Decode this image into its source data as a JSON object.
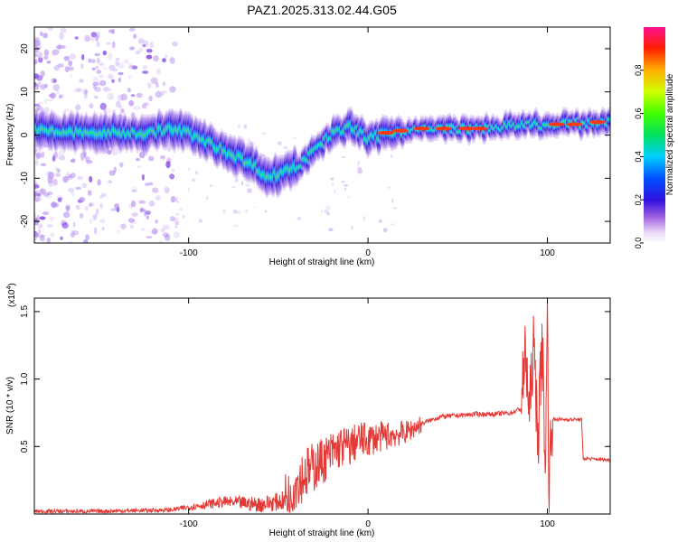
{
  "figure": {
    "title": "PAZ1.2025.313.02.44.G05"
  },
  "chart_data": [
    {
      "type": "heatmap",
      "xlabel": "Height of straight line (km)",
      "ylabel": "Frequency (Hz)",
      "xlim": [
        -186,
        135
      ],
      "ylim": [
        -25,
        25
      ],
      "xticks": [
        -100,
        0,
        100
      ],
      "yticks": [
        -20,
        -10,
        0,
        10,
        20
      ],
      "ridge": {
        "x": [
          -185,
          -160,
          -140,
          -120,
          -110,
          -100,
          -90,
          -80,
          -70,
          -60,
          -55,
          -50,
          -45,
          -40,
          -35,
          -30,
          -20,
          -10,
          -5,
          0,
          10,
          20,
          40,
          60,
          80,
          95,
          100,
          110,
          135
        ],
        "frequency": [
          1,
          0.5,
          0.5,
          0.5,
          1.5,
          0.5,
          -1.5,
          -3.5,
          -5.5,
          -8,
          -10,
          -9,
          -8,
          -7.5,
          -6,
          -3,
          0,
          2,
          1,
          -1,
          0.5,
          1,
          1.5,
          1.5,
          2,
          2.5,
          2,
          2.5,
          3
        ]
      },
      "colorbar": {
        "label": "Normalized spectral amplitude",
        "range": [
          0,
          1
        ],
        "ticks": [
          "0.0",
          "0.2",
          "0.4",
          "0.6",
          "0.8"
        ]
      }
    },
    {
      "type": "line",
      "xlabel": "Height of straight line (km)",
      "ylabel": "SNR (10 * v/v)",
      "multiplier_label": "(x10",
      "multiplier_exp": "4",
      "multiplier_close": ")",
      "xlim": [
        -186,
        135
      ],
      "ylim": [
        0,
        1.6
      ],
      "xticks": [
        -100,
        0,
        100
      ],
      "yticks": [
        "0.5",
        "1.0",
        "1.5"
      ],
      "yticks_values": [
        0.5,
        1.0,
        1.5
      ],
      "color": "#e53935",
      "series": {
        "name": "SNR",
        "x": [
          -186,
          -150,
          -110,
          -95,
          -80,
          -60,
          -46,
          -40,
          -35,
          -30,
          -25,
          -20,
          -15,
          -10,
          -5,
          0,
          10,
          20,
          25,
          30,
          40,
          50,
          60,
          70,
          80,
          85,
          88,
          90,
          92,
          95,
          97,
          99,
          100,
          101,
          102,
          104,
          110,
          119,
          120,
          122,
          135
        ],
        "y": [
          0.02,
          0.02,
          0.03,
          0.06,
          0.09,
          0.07,
          0.1,
          0.25,
          0.3,
          0.35,
          0.4,
          0.45,
          0.5,
          0.5,
          0.55,
          0.55,
          0.58,
          0.6,
          0.63,
          0.67,
          0.72,
          0.73,
          0.74,
          0.74,
          0.75,
          0.78,
          1.2,
          0.7,
          1.25,
          0.6,
          1.3,
          0.35,
          1.6,
          0.05,
          0.7,
          0.7,
          0.7,
          0.7,
          0.41,
          0.41,
          0.4
        ]
      }
    }
  ]
}
